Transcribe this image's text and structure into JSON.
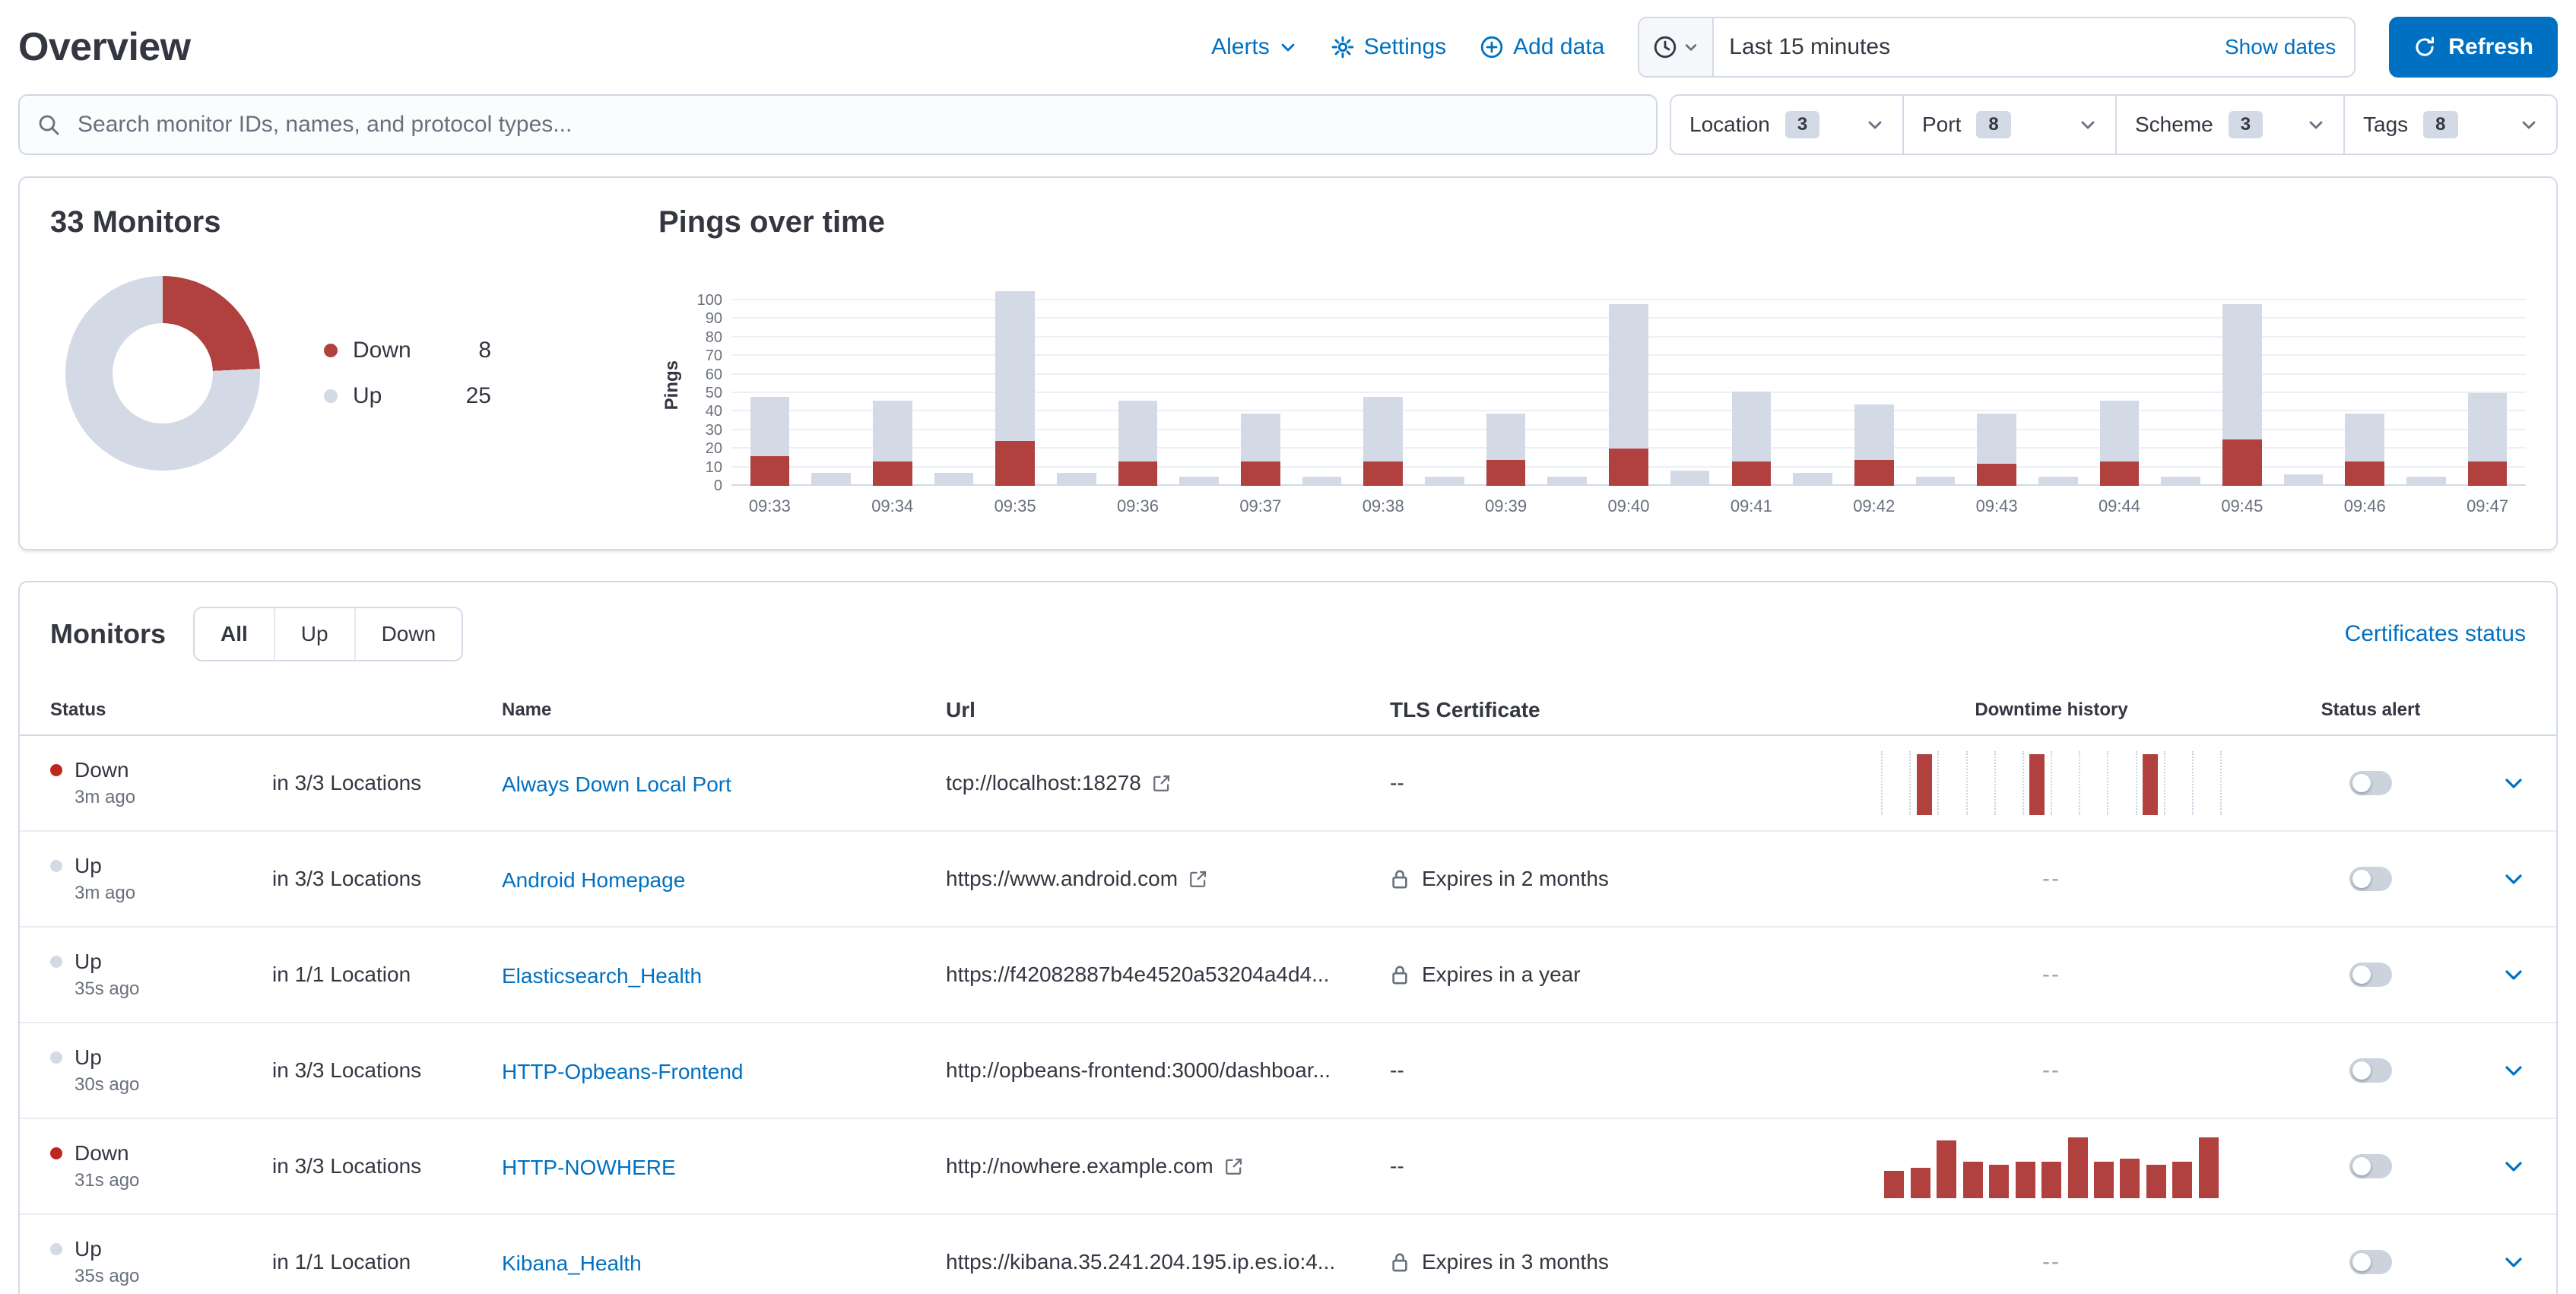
{
  "colors": {
    "primary": "#0071c2",
    "danger": "#bd271e",
    "up_dot": "#d3dae6",
    "chart_red": "#b0413e",
    "chart_gray": "#d3dae6",
    "subdued": "#69707d",
    "border": "#d3dae6"
  },
  "header": {
    "title": "Overview",
    "alerts_label": "Alerts",
    "settings_label": "Settings",
    "add_data_label": "Add data",
    "time_range": "Last 15 minutes",
    "show_dates_label": "Show dates",
    "refresh_label": "Refresh"
  },
  "filters": {
    "search_placeholder": "Search monitor IDs, names, and protocol types...",
    "items": [
      {
        "label": "Location",
        "count": "3"
      },
      {
        "label": "Port",
        "count": "8"
      },
      {
        "label": "Scheme",
        "count": "3"
      },
      {
        "label": "Tags",
        "count": "8"
      }
    ]
  },
  "snapshot": {
    "title": "33 Monitors",
    "legend": [
      {
        "label": "Down",
        "value": "8",
        "color": "#b0413e"
      },
      {
        "label": "Up",
        "value": "25",
        "color": "#d3dae6"
      }
    ]
  },
  "pings": {
    "title": "Pings over time",
    "ylabel": "Pings"
  },
  "chart_data": [
    {
      "type": "pie",
      "title": "33 Monitors",
      "total": 33,
      "slices": [
        {
          "label": "Down",
          "value": 8,
          "color": "#b0413e"
        },
        {
          "label": "Up",
          "value": 25,
          "color": "#d3dae6"
        }
      ]
    },
    {
      "type": "bar",
      "stacked": true,
      "title": "Pings over time",
      "xlabel": "",
      "ylabel": "Pings",
      "ylim": [
        0,
        100
      ],
      "yticks": [
        0,
        10,
        20,
        30,
        40,
        50,
        60,
        70,
        80,
        90,
        100
      ],
      "x": [
        "09:33:00",
        "09:33:30",
        "09:34:00",
        "09:34:30",
        "09:35:00",
        "09:35:30",
        "09:36:00",
        "09:36:30",
        "09:37:00",
        "09:37:30",
        "09:38:00",
        "09:38:30",
        "09:39:00",
        "09:39:30",
        "09:40:00",
        "09:40:30",
        "09:41:00",
        "09:41:30",
        "09:42:00",
        "09:42:30",
        "09:43:00",
        "09:43:30",
        "09:44:00",
        "09:44:30",
        "09:45:00",
        "09:45:30",
        "09:46:00",
        "09:46:30",
        "09:47:00"
      ],
      "xticklabels": [
        "09:33",
        "09:34",
        "09:35",
        "09:36",
        "09:37",
        "09:38",
        "09:39",
        "09:40",
        "09:41",
        "09:42",
        "09:43",
        "09:44",
        "09:45",
        "09:46",
        "09:47"
      ],
      "series": [
        {
          "name": "Down",
          "color": "#b0413e",
          "values": [
            16,
            0,
            13,
            0,
            24,
            0,
            13,
            0,
            13,
            0,
            13,
            0,
            14,
            0,
            20,
            0,
            13,
            0,
            14,
            0,
            12,
            0,
            13,
            0,
            25,
            0,
            13,
            0,
            13
          ]
        },
        {
          "name": "Up",
          "color": "#d3dae6",
          "values": [
            32,
            7,
            33,
            7,
            81,
            7,
            33,
            5,
            26,
            5,
            35,
            5,
            25,
            5,
            78,
            8,
            38,
            7,
            30,
            5,
            27,
            5,
            33,
            5,
            73,
            6,
            26,
            5,
            37
          ]
        }
      ],
      "legend_position": "none",
      "grid": true
    }
  ],
  "monitors": {
    "title": "Monitors",
    "tabs": [
      {
        "label": "All",
        "selected": true
      },
      {
        "label": "Up",
        "selected": false
      },
      {
        "label": "Down",
        "selected": false
      }
    ],
    "certificates_link": "Certificates status",
    "columns": [
      "Status",
      "Name",
      "Url",
      "TLS Certificate",
      "Downtime history",
      "Status alert"
    ],
    "empty_value": "--",
    "rows": [
      {
        "status": "Down",
        "ago": "3m ago",
        "locations": "in 3/3 Locations",
        "name": "Always Down Local Port",
        "url": "tcp://localhost:18278",
        "external": true,
        "tls": "--",
        "tls_lock": false,
        "downtime": [
          0,
          1,
          0,
          0,
          0,
          1,
          0,
          0,
          0,
          1,
          0,
          0
        ],
        "alert_on": false
      },
      {
        "status": "Up",
        "ago": "3m ago",
        "locations": "in 3/3 Locations",
        "name": "Android Homepage",
        "url": "https://www.android.com",
        "external": true,
        "tls": "Expires in 2 months",
        "tls_lock": true,
        "downtime": null,
        "alert_on": false
      },
      {
        "status": "Up",
        "ago": "35s ago",
        "locations": "in 1/1 Location",
        "name": "Elasticsearch_Health",
        "url": "https://f42082887b4e4520a53204a4d4...",
        "external": false,
        "tls": "Expires in a year",
        "tls_lock": true,
        "downtime": null,
        "alert_on": false
      },
      {
        "status": "Up",
        "ago": "30s ago",
        "locations": "in 3/3 Locations",
        "name": "HTTP-Opbeans-Frontend",
        "url": "http://opbeans-frontend:3000/dashboar...",
        "external": false,
        "tls": "--",
        "tls_lock": false,
        "downtime": null,
        "alert_on": false
      },
      {
        "status": "Down",
        "ago": "31s ago",
        "locations": "in 3/3 Locations",
        "name": "HTTP-NOWHERE",
        "url": "http://nowhere.example.com",
        "external": true,
        "tls": "--",
        "tls_lock": false,
        "downtime": [
          0.45,
          0.5,
          0.95,
          0.6,
          0.55,
          0.6,
          0.6,
          1,
          0.6,
          0.65,
          0.55,
          0.6,
          1
        ],
        "alert_on": false
      },
      {
        "status": "Up",
        "ago": "35s ago",
        "locations": "in 1/1 Location",
        "name": "Kibana_Health",
        "url": "https://kibana.35.241.204.195.ip.es.io:4...",
        "external": false,
        "tls": "Expires in 3 months",
        "tls_lock": true,
        "downtime": null,
        "alert_on": false
      }
    ]
  }
}
